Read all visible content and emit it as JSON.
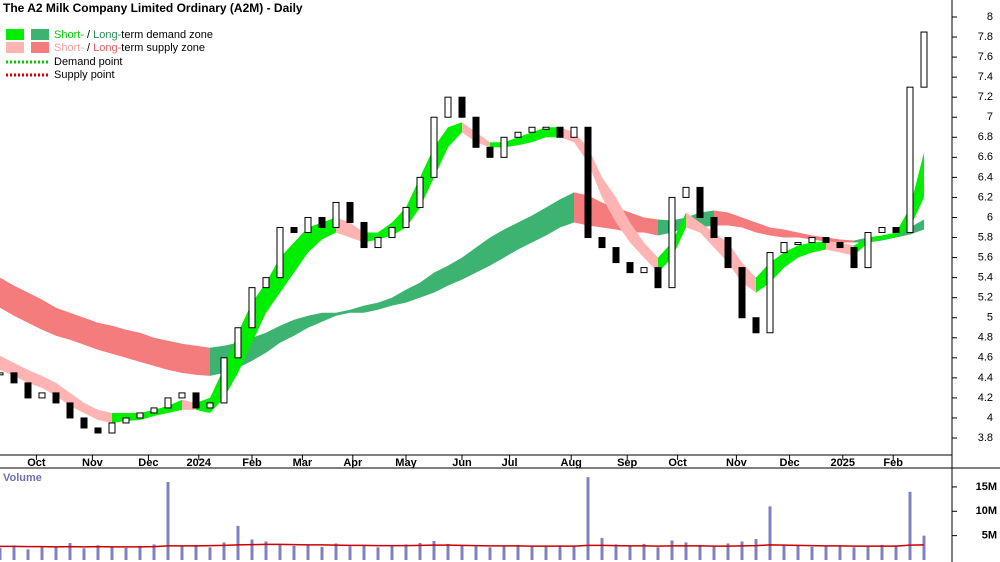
{
  "chart_data": {
    "type": "candlestick",
    "title": "The A2 Milk Company Limited Ordinary (A2M) - Daily",
    "legend": [
      {
        "short": "Short-",
        "sep": " / ",
        "long": "Long-",
        "rest": "term demand zone"
      },
      {
        "short": "Short-",
        "sep": " / ",
        "long": "Long-",
        "rest": "term supply zone"
      },
      {
        "label": "Demand point"
      },
      {
        "label": "Supply point"
      }
    ],
    "colors": {
      "short_demand": "#00ee00",
      "long_demand": "#3cb371",
      "short_supply": "#ffb3b3",
      "long_supply": "#f47c7c",
      "candle": "#000000",
      "volume": "#8080c0",
      "volume_avg": "#cc0000",
      "demand_point": "#00cc00",
      "supply_point": "#dd0000"
    },
    "x": [
      0,
      5,
      10,
      15,
      20,
      25,
      30,
      35,
      40,
      45,
      50,
      55,
      60,
      65,
      70,
      75,
      80,
      85,
      90,
      95,
      100,
      105,
      110,
      115,
      120,
      125,
      130,
      135,
      140,
      145,
      150,
      155,
      160,
      165,
      170,
      175,
      180,
      185,
      190,
      195,
      200,
      205,
      210,
      215,
      220,
      225,
      230,
      235,
      240,
      245,
      250,
      255,
      260,
      265,
      270,
      275,
      280,
      285,
      290,
      295,
      300,
      305,
      310,
      315,
      320,
      325,
      330
    ],
    "xlim": [
      0,
      340
    ],
    "xticks": [
      {
        "value": 13,
        "label": "Oct"
      },
      {
        "value": 33,
        "label": "Nov"
      },
      {
        "value": 53,
        "label": "Dec"
      },
      {
        "value": 71,
        "label": "2024"
      },
      {
        "value": 90,
        "label": "Feb"
      },
      {
        "value": 108,
        "label": "Mar"
      },
      {
        "value": 126,
        "label": "Apr"
      },
      {
        "value": 145,
        "label": "May"
      },
      {
        "value": 165,
        "label": "Jun"
      },
      {
        "value": 182,
        "label": "Jul"
      },
      {
        "value": 204,
        "label": "Aug"
      },
      {
        "value": 224,
        "label": "Sep"
      },
      {
        "value": 242,
        "label": "Oct"
      },
      {
        "value": 263,
        "label": "Nov"
      },
      {
        "value": 282,
        "label": "Dec"
      },
      {
        "value": 301,
        "label": "2025"
      },
      {
        "value": 319,
        "label": "Feb"
      }
    ],
    "close": [
      4.45,
      4.35,
      4.2,
      4.25,
      4.15,
      4.0,
      3.9,
      3.85,
      3.95,
      4.0,
      4.05,
      4.1,
      4.2,
      4.25,
      4.1,
      4.15,
      4.6,
      4.9,
      5.3,
      5.4,
      5.9,
      5.85,
      6.0,
      5.9,
      6.15,
      5.95,
      5.7,
      5.8,
      5.9,
      6.1,
      6.4,
      7.0,
      7.2,
      7.0,
      6.7,
      6.6,
      6.8,
      6.85,
      6.9,
      6.9,
      6.8,
      6.9,
      5.8,
      5.7,
      5.55,
      5.45,
      5.5,
      5.3,
      6.2,
      6.3,
      6.0,
      5.8,
      5.5,
      5.0,
      4.85,
      5.65,
      5.75,
      5.75,
      5.8,
      5.75,
      5.7,
      5.5,
      5.85,
      5.9,
      5.85,
      7.3,
      7.85
    ],
    "short_upper": [
      4.62,
      4.55,
      4.48,
      4.42,
      4.35,
      4.25,
      4.15,
      4.08,
      4.05,
      4.05,
      4.05,
      4.08,
      4.12,
      4.18,
      4.15,
      4.2,
      4.5,
      4.85,
      5.15,
      5.35,
      5.6,
      5.75,
      5.9,
      5.95,
      6.0,
      5.95,
      5.85,
      5.85,
      5.95,
      6.1,
      6.4,
      6.7,
      6.9,
      6.95,
      6.85,
      6.75,
      6.75,
      6.8,
      6.85,
      6.9,
      6.9,
      6.85,
      6.7,
      6.4,
      6.2,
      5.95,
      5.75,
      5.6,
      5.75,
      6.05,
      5.95,
      5.85,
      5.75,
      5.55,
      5.4,
      5.55,
      5.65,
      5.72,
      5.75,
      5.76,
      5.75,
      5.72,
      5.8,
      5.82,
      5.85,
      6.1,
      6.65
    ],
    "short_lower": [
      4.48,
      4.42,
      4.35,
      4.3,
      4.22,
      4.12,
      4.05,
      3.98,
      3.95,
      3.97,
      3.98,
      4.02,
      4.05,
      4.08,
      4.08,
      4.05,
      4.2,
      4.45,
      4.75,
      5.05,
      5.25,
      5.45,
      5.65,
      5.78,
      5.85,
      5.8,
      5.75,
      5.78,
      5.82,
      5.9,
      6.1,
      6.4,
      6.7,
      6.85,
      6.75,
      6.7,
      6.7,
      6.72,
      6.75,
      6.8,
      6.8,
      6.75,
      6.55,
      6.2,
      5.95,
      5.75,
      5.6,
      5.45,
      5.6,
      5.9,
      5.85,
      5.7,
      5.55,
      5.35,
      5.25,
      5.35,
      5.5,
      5.6,
      5.65,
      5.68,
      5.65,
      5.62,
      5.75,
      5.78,
      5.8,
      5.9,
      6.2
    ],
    "long_upper": [
      5.4,
      5.32,
      5.25,
      5.18,
      5.1,
      5.05,
      5.0,
      4.95,
      4.92,
      4.88,
      4.85,
      4.8,
      4.77,
      4.74,
      4.72,
      4.7,
      4.72,
      4.75,
      4.8,
      4.85,
      4.92,
      4.98,
      5.02,
      5.05,
      5.05,
      5.08,
      5.12,
      5.15,
      5.2,
      5.28,
      5.35,
      5.45,
      5.52,
      5.6,
      5.7,
      5.8,
      5.88,
      5.95,
      6.02,
      6.1,
      6.18,
      6.25,
      6.22,
      6.15,
      6.1,
      6.05,
      6.0,
      5.98,
      5.97,
      6.0,
      6.05,
      6.07,
      6.05,
      6.0,
      5.95,
      5.9,
      5.88,
      5.85,
      5.82,
      5.8,
      5.78,
      5.77,
      5.8,
      5.82,
      5.84,
      5.9,
      5.98
    ],
    "long_lower": [
      5.1,
      5.02,
      4.95,
      4.88,
      4.82,
      4.78,
      4.73,
      4.68,
      4.64,
      4.6,
      4.56,
      4.52,
      4.48,
      4.45,
      4.43,
      4.42,
      4.45,
      4.5,
      4.57,
      4.65,
      4.75,
      4.82,
      4.9,
      4.96,
      5.02,
      5.05,
      5.05,
      5.08,
      5.12,
      5.15,
      5.2,
      5.25,
      5.32,
      5.38,
      5.45,
      5.52,
      5.6,
      5.68,
      5.75,
      5.82,
      5.9,
      5.95,
      5.92,
      5.9,
      5.88,
      5.85,
      5.85,
      5.82,
      5.85,
      5.9,
      5.9,
      5.92,
      5.92,
      5.9,
      5.85,
      5.82,
      5.8,
      5.8,
      5.78,
      5.76,
      5.75,
      5.75,
      5.75,
      5.77,
      5.8,
      5.83,
      5.88
    ],
    "ylim": [
      3.8,
      8.0
    ],
    "yticks": [
      3.8,
      4.0,
      4.2,
      4.4,
      4.6,
      4.8,
      5.0,
      5.2,
      5.4,
      5.6,
      5.8,
      6.0,
      6.2,
      6.4,
      6.6,
      6.8,
      7.0,
      7.2,
      7.4,
      7.6,
      7.8,
      8.0
    ],
    "volume_label": "Volume",
    "volume": [
      2500000,
      3000000,
      2200000,
      2800000,
      2600000,
      3500000,
      2400000,
      3000000,
      2700000,
      2500000,
      2900000,
      3200000,
      16000000,
      2800000,
      3100000,
      2600000,
      3600000,
      7000000,
      4200000,
      3800000,
      3300000,
      2900000,
      3000000,
      2700000,
      3400000,
      2800000,
      3100000,
      2600000,
      3000000,
      3200000,
      3500000,
      3900000,
      3300000,
      3000000,
      2800000,
      2600000,
      2900000,
      3100000,
      2700000,
      2800000,
      3000000,
      2900000,
      17000000,
      4500000,
      3200000,
      2800000,
      3300000,
      2600000,
      4000000,
      3600000,
      3100000,
      2900000,
      3400000,
      3800000,
      4300000,
      11000000,
      3200000,
      2900000,
      2700000,
      2800000,
      3000000,
      2600000,
      2900000,
      3100000,
      3000000,
      14000000,
      5000000
    ],
    "volume_avg": [
      2800000,
      2800000,
      2750000,
      2750000,
      2700000,
      2750000,
      2700000,
      2750000,
      2700000,
      2700000,
      2700000,
      2750000,
      2900000,
      2900000,
      2900000,
      2950000,
      3000000,
      3100000,
      3150000,
      3200000,
      3200000,
      3150000,
      3100000,
      3100000,
      3050000,
      3000000,
      3000000,
      2950000,
      2950000,
      2950000,
      3000000,
      3050000,
      3050000,
      3000000,
      2950000,
      2900000,
      2900000,
      2900000,
      2850000,
      2850000,
      2850000,
      2850000,
      3000000,
      3000000,
      2950000,
      2900000,
      2900000,
      2850000,
      2900000,
      2900000,
      2900000,
      2850000,
      2850000,
      2900000,
      2950000,
      3100000,
      3050000,
      3000000,
      2950000,
      2900000,
      2900000,
      2850000,
      2850000,
      2850000,
      2850000,
      3050000,
      3100000
    ],
    "vlim": [
      0,
      19500000
    ],
    "vticks": [
      {
        "value": 5000000,
        "label": "5M"
      },
      {
        "value": 10000000,
        "label": "10M"
      },
      {
        "value": 15000000,
        "label": "15M"
      }
    ]
  }
}
